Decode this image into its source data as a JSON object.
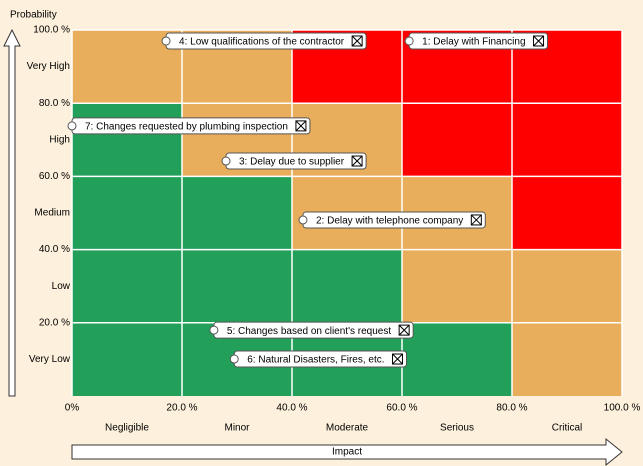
{
  "chart_data": {
    "type": "risk-matrix",
    "y_axis_title": "Probability",
    "x_axis_title": "Impact",
    "x_categories": [
      "Negligible",
      "Minor",
      "Moderate",
      "Serious",
      "Critical"
    ],
    "y_categories": [
      "Very Low",
      "Low",
      "Medium",
      "High",
      "Very High"
    ],
    "xlim": [
      0,
      100
    ],
    "ylim": [
      0,
      100
    ],
    "xticks": [
      {
        "value": 0,
        "label": "0%"
      },
      {
        "value": 20,
        "label": "20.0 %"
      },
      {
        "value": 40,
        "label": "40.0 %"
      },
      {
        "value": 60,
        "label": "60.0 %"
      },
      {
        "value": 80,
        "label": "80.0 %"
      },
      {
        "value": 100,
        "label": "100.0 %"
      }
    ],
    "yticks": [
      {
        "value": 20,
        "label": "20.0 %"
      },
      {
        "value": 40,
        "label": "40.0 %"
      },
      {
        "value": 60,
        "label": "60.0 %"
      },
      {
        "value": 80,
        "label": "80.0 %"
      },
      {
        "value": 100,
        "label": "100.0 %"
      }
    ],
    "cell_colors": [
      [
        "#22a05a",
        "#22a05a",
        "#22a05a",
        "#22a05a",
        "#e9ae5b"
      ],
      [
        "#22a05a",
        "#22a05a",
        "#22a05a",
        "#e9ae5b",
        "#e9ae5b"
      ],
      [
        "#22a05a",
        "#22a05a",
        "#e9ae5b",
        "#e9ae5b",
        "#ff0000"
      ],
      [
        "#22a05a",
        "#e9ae5b",
        "#e9ae5b",
        "#ff0000",
        "#ff0000"
      ],
      [
        "#e9ae5b",
        "#e9ae5b",
        "#ff0000",
        "#ff0000",
        "#ff0000"
      ]
    ],
    "points": {
      "labels": [
        "1: Delay with Financing",
        "2: Delay with telephone company",
        "3: Delay due to supplier",
        "4: Low qualifications of the contractor",
        "5: Changes based on client's request",
        "6: Natural Disasters, Fires, etc.",
        "7: Changes requested by plumbing inspection"
      ],
      "x": [
        61.3,
        42,
        28,
        17.1,
        25.8,
        29.5,
        0
      ],
      "values": [
        97,
        48.1,
        64.2,
        97,
        18,
        10.1,
        73.8
      ]
    }
  }
}
